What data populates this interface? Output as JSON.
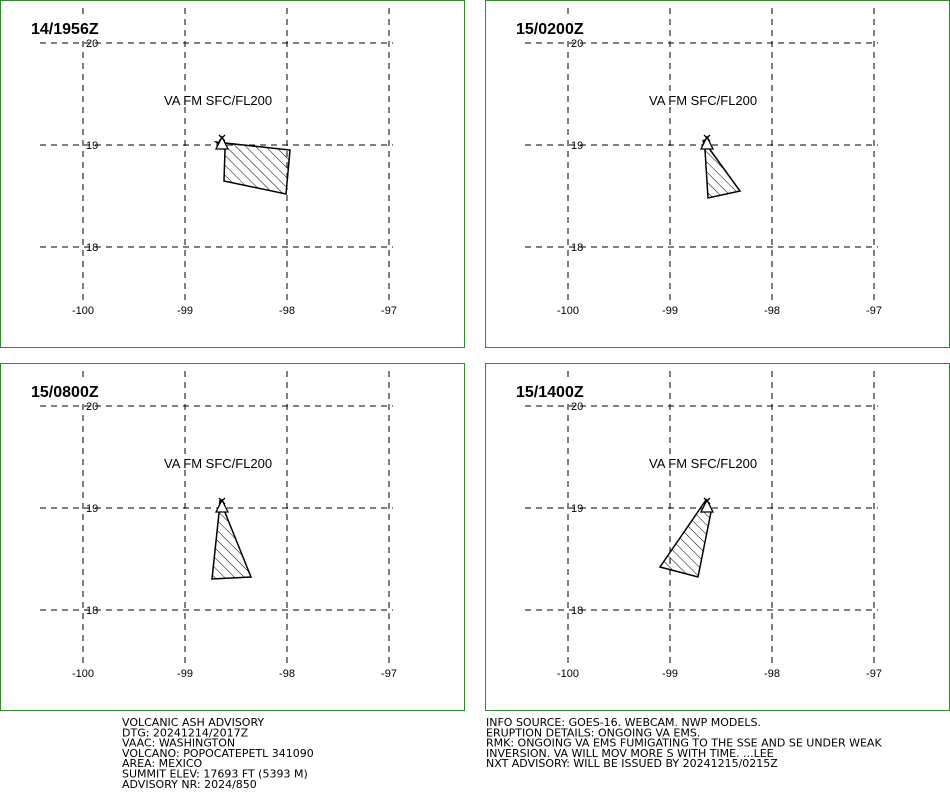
{
  "panels": [
    {
      "time": "14/1956Z",
      "label": "VA FM SFC/FL200"
    },
    {
      "time": "15/0200Z",
      "label": "VA FM SFC/FL200"
    },
    {
      "time": "15/0800Z",
      "label": "VA FM SFC/FL200"
    },
    {
      "time": "15/1400Z",
      "label": "VA FM SFC/FL200"
    }
  ],
  "grid": {
    "lon": [
      -100,
      -99,
      -98,
      -97
    ],
    "lat": [
      20,
      19,
      18
    ]
  },
  "advisory_left": [
    "VOLCANIC ASH ADVISORY",
    "DTG: 20241214/2017Z",
    "VAAC: WASHINGTON",
    "VOLCANO: POPOCATEPETL 341090",
    "AREA: MEXICO",
    "SUMMIT ELEV: 17693 FT (5393 M)",
    "ADVISORY NR: 2024/850"
  ],
  "advisory_right": [
    "INFO SOURCE: GOES-16. WEBCAM. NWP MODELS.",
    "ERUPTION DETAILS: ONGOING VA EMS.",
    "RMK: ONGOING VA EMS FUMIGATING TO THE SSE AND SE UNDER WEAK",
    "INVERSION. VA WILL MOV MORE S WITH TIME. ...LEE",
    "NXT ADVISORY: WILL BE ISSUED BY 20241215/0215Z"
  ]
}
